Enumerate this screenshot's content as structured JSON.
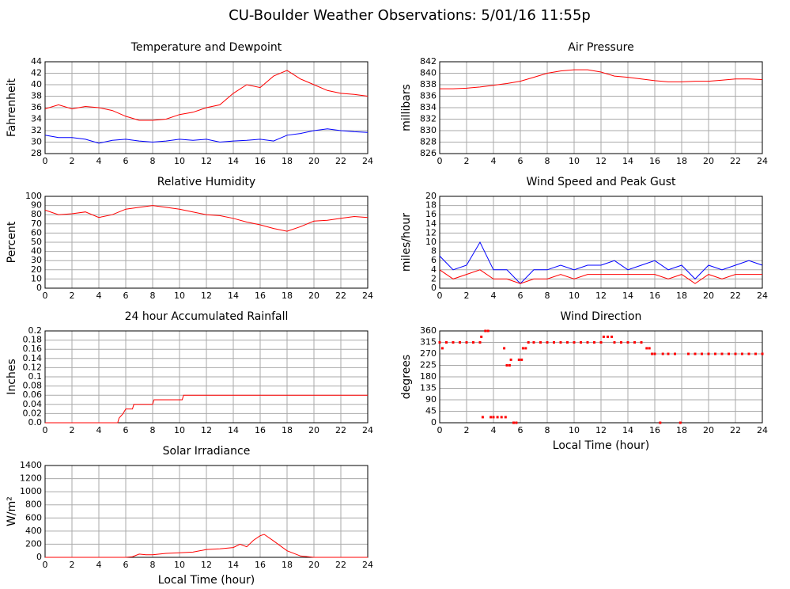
{
  "title": "CU-Boulder Weather Observations: 5/01/16 11:55p",
  "chart_data": [
    {
      "type": "line",
      "title": "Temperature and Dewpoint",
      "ylabel": "Fahrenheit",
      "x": [
        0,
        1,
        2,
        3,
        4,
        5,
        6,
        7,
        8,
        9,
        10,
        11,
        12,
        13,
        14,
        15,
        16,
        17,
        18,
        19,
        20,
        21,
        22,
        23,
        24
      ],
      "xlim": [
        0,
        24
      ],
      "xticks": [
        0,
        2,
        4,
        6,
        8,
        10,
        12,
        14,
        16,
        18,
        20,
        22,
        24
      ],
      "ylim": [
        28,
        44
      ],
      "yticks": [
        28,
        30,
        32,
        34,
        36,
        38,
        40,
        42,
        44
      ],
      "grid": true,
      "series": [
        {
          "color": "#ff0000",
          "values": [
            35.8,
            36.5,
            35.8,
            36.2,
            36,
            35.5,
            34.5,
            33.8,
            33.8,
            34,
            34.8,
            35.2,
            36,
            36.5,
            38.5,
            40,
            39.5,
            41.5,
            42.5,
            41,
            40,
            39,
            38.5,
            38.3,
            38
          ]
        },
        {
          "color": "#0000ff",
          "values": [
            31.2,
            30.8,
            30.8,
            30.5,
            29.8,
            30.3,
            30.5,
            30.2,
            30,
            30.2,
            30.5,
            30.3,
            30.5,
            30,
            30.2,
            30.3,
            30.5,
            30.2,
            31.2,
            31.5,
            32,
            32.3,
            32,
            31.8,
            31.7
          ]
        }
      ]
    },
    {
      "type": "line",
      "title": "Air Pressure",
      "ylabel": "millibars",
      "x": [
        0,
        1,
        2,
        3,
        4,
        5,
        6,
        7,
        8,
        9,
        10,
        11,
        12,
        13,
        14,
        15,
        16,
        17,
        18,
        19,
        20,
        21,
        22,
        23,
        24
      ],
      "xlim": [
        0,
        24
      ],
      "xticks": [
        0,
        2,
        4,
        6,
        8,
        10,
        12,
        14,
        16,
        18,
        20,
        22,
        24
      ],
      "ylim": [
        826,
        842
      ],
      "yticks": [
        826,
        828,
        830,
        832,
        834,
        836,
        838,
        840,
        842
      ],
      "grid": true,
      "series": [
        {
          "color": "#ff0000",
          "values": [
            837.3,
            837.3,
            837.4,
            837.6,
            837.9,
            838.2,
            838.6,
            839.3,
            840.0,
            840.4,
            840.6,
            840.6,
            840.2,
            839.5,
            839.3,
            839.0,
            838.7,
            838.5,
            838.5,
            838.6,
            838.6,
            838.8,
            839.0,
            839.0,
            838.9
          ]
        }
      ]
    },
    {
      "type": "line",
      "title": "Relative Humidity",
      "ylabel": "Percent",
      "x": [
        0,
        1,
        2,
        3,
        4,
        5,
        6,
        7,
        8,
        9,
        10,
        11,
        12,
        13,
        14,
        15,
        16,
        17,
        18,
        19,
        20,
        21,
        22,
        23,
        24
      ],
      "xlim": [
        0,
        24
      ],
      "xticks": [
        0,
        2,
        4,
        6,
        8,
        10,
        12,
        14,
        16,
        18,
        20,
        22,
        24
      ],
      "ylim": [
        0,
        100
      ],
      "yticks": [
        0,
        10,
        20,
        30,
        40,
        50,
        60,
        70,
        80,
        90,
        100
      ],
      "grid": true,
      "series": [
        {
          "color": "#ff0000",
          "values": [
            85,
            80,
            81,
            83,
            77,
            80,
            86,
            88,
            90,
            88,
            86,
            83,
            80,
            79,
            76,
            72,
            69,
            65,
            62,
            67,
            73,
            74,
            76,
            78,
            77
          ]
        }
      ]
    },
    {
      "type": "line",
      "title": "Wind Speed and Peak Gust",
      "ylabel": "miles/hour",
      "x": [
        0,
        1,
        2,
        3,
        4,
        5,
        6,
        7,
        8,
        9,
        10,
        11,
        12,
        13,
        14,
        15,
        16,
        17,
        18,
        19,
        20,
        21,
        22,
        23,
        24
      ],
      "xlim": [
        0,
        24
      ],
      "xticks": [
        0,
        2,
        4,
        6,
        8,
        10,
        12,
        14,
        16,
        18,
        20,
        22,
        24
      ],
      "ylim": [
        0,
        20
      ],
      "yticks": [
        0,
        2,
        4,
        6,
        8,
        10,
        12,
        14,
        16,
        18,
        20
      ],
      "grid": true,
      "series": [
        {
          "color": "#0000ff",
          "values": [
            7,
            4,
            5,
            10,
            4,
            4,
            1,
            4,
            4,
            5,
            4,
            5,
            5,
            6,
            4,
            5,
            6,
            4,
            5,
            2,
            5,
            4,
            5,
            6,
            5
          ]
        },
        {
          "color": "#ff0000",
          "values": [
            4,
            2,
            3,
            4,
            2,
            2,
            1,
            2,
            2,
            3,
            2,
            3,
            3,
            3,
            3,
            3,
            3,
            2,
            3,
            1,
            3,
            2,
            3,
            3,
            3
          ]
        }
      ]
    },
    {
      "type": "line",
      "title": "24 hour Accumulated Rainfall",
      "ylabel": "Inches",
      "x": [
        0,
        5.4,
        5.5,
        5.8,
        6.0,
        6.5,
        6.6,
        8.0,
        8.1,
        10.2,
        10.3,
        24
      ],
      "xlim": [
        0,
        24
      ],
      "xticks": [
        0,
        2,
        4,
        6,
        8,
        10,
        12,
        14,
        16,
        18,
        20,
        22,
        24
      ],
      "ylim": [
        0,
        0.2
      ],
      "yticks": [
        {
          "value": 0,
          "label": "0.0"
        },
        0.02,
        0.04,
        0.06,
        0.08,
        0.1,
        0.12,
        0.14,
        0.16,
        0.18,
        0.2
      ],
      "grid": true,
      "series": [
        {
          "color": "#ff0000",
          "values": [
            0,
            0,
            0.01,
            0.02,
            0.03,
            0.03,
            0.04,
            0.04,
            0.05,
            0.05,
            0.06,
            0.06
          ]
        }
      ]
    },
    {
      "type": "scatter",
      "title": "Wind Direction",
      "ylabel": "degrees",
      "xlabel": "Local Time (hour)",
      "x": [
        0,
        0.2,
        0.5,
        1,
        1.5,
        2,
        2.5,
        3,
        3.1,
        3.2,
        3.4,
        3.6,
        3.8,
        4,
        4.3,
        4.6,
        4.8,
        4.9,
        5,
        5.2,
        5.3,
        5.5,
        5.7,
        5.9,
        6.1,
        6.2,
        6.4,
        6.6,
        7,
        7.5,
        8,
        8.5,
        9,
        9.5,
        10,
        10.5,
        11,
        11.5,
        12,
        12.2,
        12.5,
        12.8,
        13,
        13.5,
        14,
        14.5,
        15,
        15.4,
        15.6,
        15.8,
        16,
        16.4,
        16.6,
        17,
        17.5,
        17.9,
        18.5,
        19,
        19.5,
        20,
        20.5,
        21,
        21.5,
        22,
        22.5,
        23,
        23.5,
        24
      ],
      "xlim": [
        0,
        24
      ],
      "xticks": [
        0,
        2,
        4,
        6,
        8,
        10,
        12,
        14,
        16,
        18,
        20,
        22,
        24
      ],
      "ylim": [
        0,
        360
      ],
      "yticks": [
        0,
        45,
        90,
        135,
        180,
        225,
        270,
        315,
        360
      ],
      "grid": true,
      "series": [
        {
          "color": "#ff0000",
          "values": [
            315,
            292,
            315,
            315,
            315,
            315,
            315,
            315,
            337,
            22,
            360,
            360,
            22,
            22,
            22,
            22,
            292,
            22,
            225,
            225,
            247,
            0,
            0,
            247,
            247,
            292,
            292,
            315,
            315,
            315,
            315,
            315,
            315,
            315,
            315,
            315,
            315,
            315,
            315,
            337,
            337,
            337,
            315,
            315,
            315,
            315,
            315,
            292,
            292,
            270,
            270,
            0,
            270,
            270,
            270,
            0,
            270,
            270,
            270,
            270,
            270,
            270,
            270,
            270,
            270,
            270,
            270,
            270
          ]
        }
      ]
    },
    {
      "type": "line",
      "title": "Solar Irradiance",
      "ylabel": "W/m²",
      "xlabel": "Local Time (hour)",
      "x": [
        0,
        1,
        2,
        3,
        4,
        5,
        6,
        6.5,
        7,
        7.5,
        8,
        9,
        10,
        11,
        12,
        13,
        14,
        14.5,
        15,
        15.5,
        16,
        16.3,
        17,
        18,
        19,
        20,
        21,
        22,
        23,
        24
      ],
      "xlim": [
        0,
        24
      ],
      "xticks": [
        0,
        2,
        4,
        6,
        8,
        10,
        12,
        14,
        16,
        18,
        20,
        22,
        24
      ],
      "ylim": [
        0,
        1400
      ],
      "yticks": [
        0,
        200,
        400,
        600,
        800,
        1000,
        1200,
        1400
      ],
      "grid": true,
      "series": [
        {
          "color": "#ff0000",
          "values": [
            0,
            0,
            0,
            0,
            0,
            0,
            0,
            10,
            50,
            40,
            40,
            60,
            70,
            80,
            120,
            130,
            150,
            200,
            160,
            260,
            330,
            350,
            250,
            100,
            20,
            0,
            0,
            0,
            0,
            0
          ]
        }
      ]
    }
  ]
}
